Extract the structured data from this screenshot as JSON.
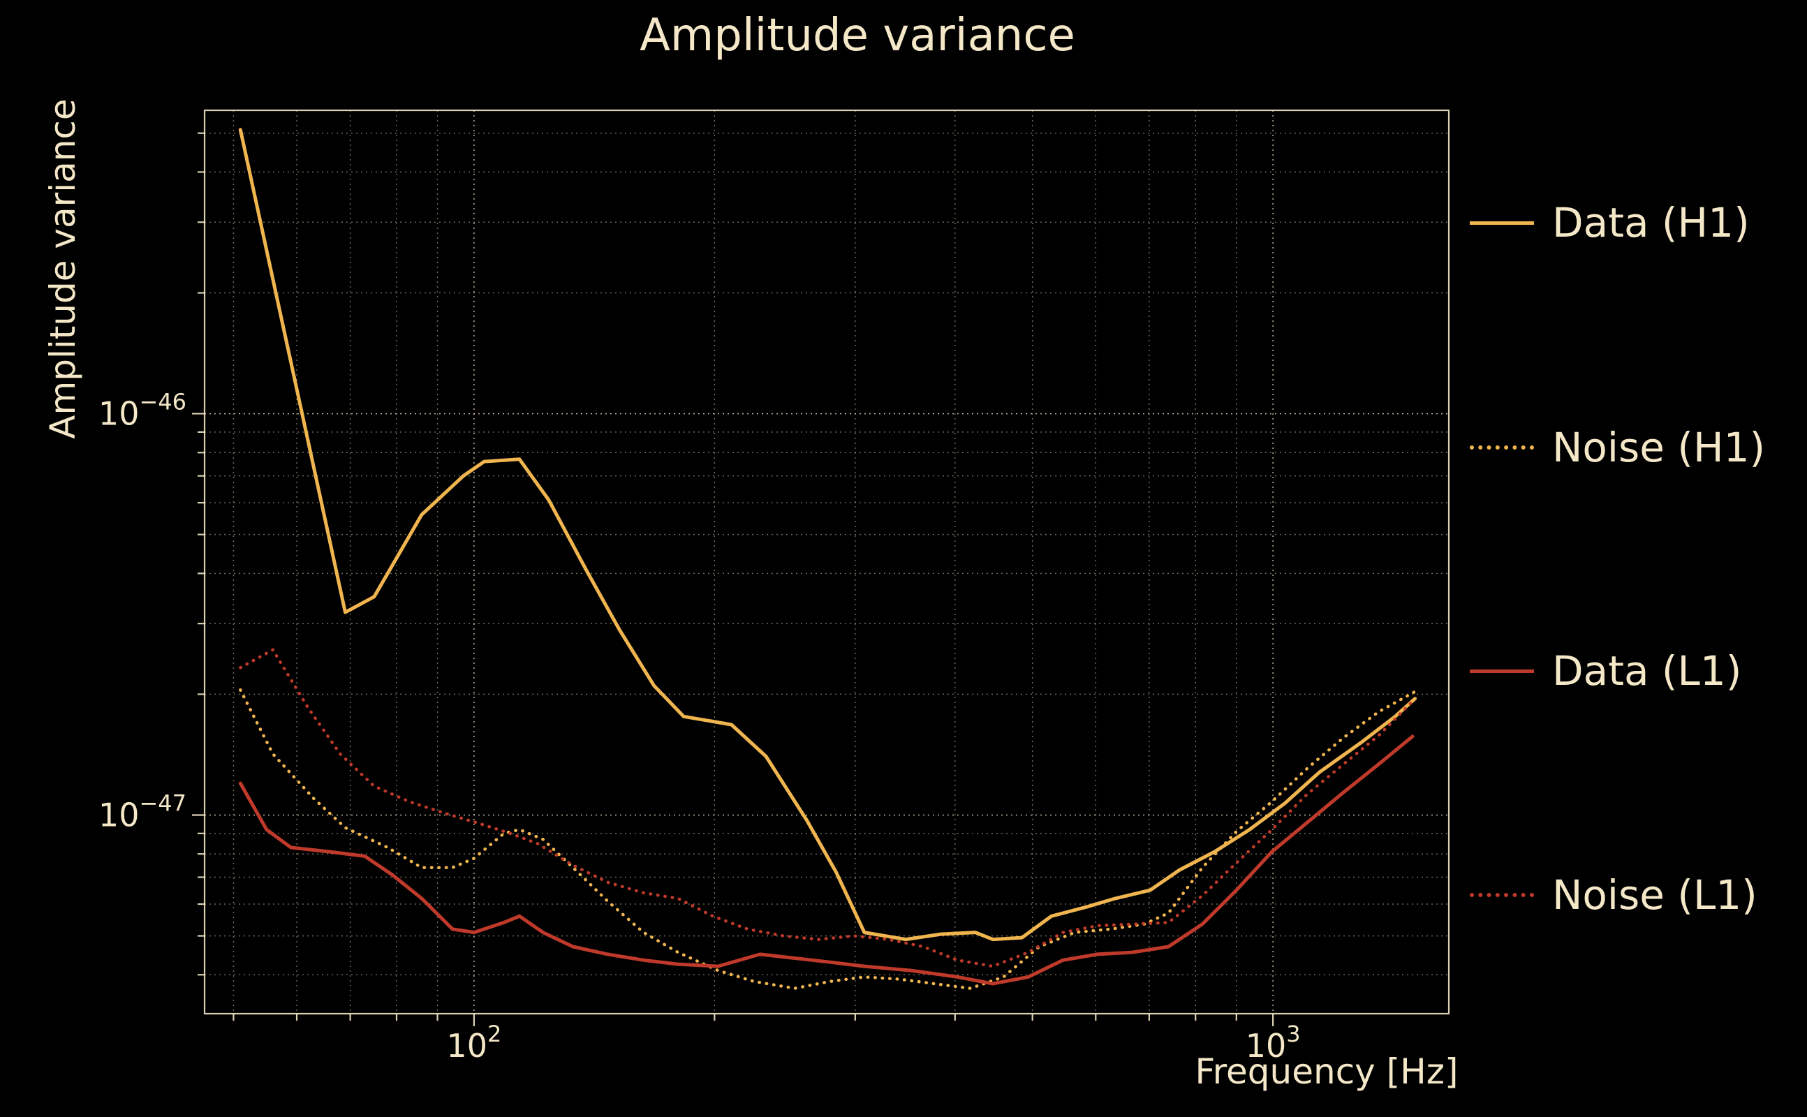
{
  "title": "Amplitude variance",
  "xlabel": "Frequency [Hz]",
  "ylabel": "Amplitude variance",
  "colors": {
    "background": "#000000",
    "text": "#f5e8c8",
    "grid": "#f5e8c8",
    "h1": "#f0b54e",
    "l1": "#c03a2b"
  },
  "legend": {
    "entries": [
      {
        "label": "Data (H1)",
        "color": "h1",
        "style": "solid"
      },
      {
        "label": "Noise (H1)",
        "color": "h1",
        "style": "dotted"
      },
      {
        "label": "Data (L1)",
        "color": "l1",
        "style": "solid"
      },
      {
        "label": "Noise (L1)",
        "color": "l1",
        "style": "dotted"
      }
    ]
  },
  "chart_data": {
    "type": "line",
    "title": "Amplitude variance",
    "xlabel": "Frequency [Hz]",
    "ylabel": "Amplitude variance",
    "xscale": "log",
    "yscale": "log",
    "xlim": [
      46,
      1660
    ],
    "ylim": [
      3.2e-48,
      5.7e-46
    ],
    "grid": "both",
    "legend_position": "right-outside",
    "xticks": [
      {
        "value": 100,
        "base": "10",
        "exp": "2"
      },
      {
        "value": 1000,
        "base": "10",
        "exp": "3"
      }
    ],
    "yticks": [
      {
        "value": 1e-46,
        "base": "10",
        "exp": "−46"
      },
      {
        "value": 1e-47,
        "base": "10",
        "exp": "−47"
      }
    ],
    "series": [
      {
        "name": "Data (H1)",
        "color": "h1",
        "style": "solid",
        "points": [
          [
            51,
            5.1e-46
          ],
          [
            69,
            3.2e-47
          ],
          [
            75,
            3.5e-47
          ],
          [
            86,
            5.6e-47
          ],
          [
            97,
            7e-47
          ],
          [
            103,
            7.6e-47
          ],
          [
            114,
            7.7e-47
          ],
          [
            124,
            6.1e-47
          ],
          [
            138,
            4.1e-47
          ],
          [
            152,
            2.9e-47
          ],
          [
            168,
            2.1e-47
          ],
          [
            183,
            1.76e-47
          ],
          [
            210,
            1.68e-47
          ],
          [
            232,
            1.4e-47
          ],
          [
            261,
            9.7e-48
          ],
          [
            284,
            7.2e-48
          ],
          [
            308,
            5.1e-48
          ],
          [
            347,
            4.9e-48
          ],
          [
            384,
            5.05e-48
          ],
          [
            424,
            5.1e-48
          ],
          [
            446,
            4.9e-48
          ],
          [
            485,
            4.95e-48
          ],
          [
            528,
            5.6e-48
          ],
          [
            584,
            5.9e-48
          ],
          [
            635,
            6.2e-48
          ],
          [
            702,
            6.5e-48
          ],
          [
            764,
            7.3e-48
          ],
          [
            845,
            8.1e-48
          ],
          [
            935,
            9.2e-48
          ],
          [
            1035,
            1.07e-47
          ],
          [
            1144,
            1.28e-47
          ],
          [
            1286,
            1.51e-47
          ],
          [
            1422,
            1.76e-47
          ],
          [
            1506,
            1.95e-47
          ]
        ]
      },
      {
        "name": "Noise (H1)",
        "color": "h1",
        "style": "dotted",
        "points": [
          [
            51,
            2.05e-47
          ],
          [
            56,
            1.42e-47
          ],
          [
            63,
            1.1e-47
          ],
          [
            69,
            9.3e-48
          ],
          [
            78,
            8.3e-48
          ],
          [
            86,
            7.4e-48
          ],
          [
            94,
            7.4e-48
          ],
          [
            100,
            7.8e-48
          ],
          [
            109,
            9e-48
          ],
          [
            114,
            9.2e-48
          ],
          [
            122,
            8.7e-48
          ],
          [
            133,
            7.4e-48
          ],
          [
            147,
            6.1e-48
          ],
          [
            163,
            5.1e-48
          ],
          [
            180,
            4.55e-48
          ],
          [
            202,
            4.1e-48
          ],
          [
            224,
            3.85e-48
          ],
          [
            252,
            3.7e-48
          ],
          [
            279,
            3.85e-48
          ],
          [
            308,
            3.95e-48
          ],
          [
            341,
            3.9e-48
          ],
          [
            377,
            3.8e-48
          ],
          [
            418,
            3.7e-48
          ],
          [
            460,
            3.95e-48
          ],
          [
            510,
            4.7e-48
          ],
          [
            565,
            5.1e-48
          ],
          [
            627,
            5.2e-48
          ],
          [
            690,
            5.35e-48
          ],
          [
            740,
            5.7e-48
          ],
          [
            816,
            7.4e-48
          ],
          [
            900,
            9.1e-48
          ],
          [
            997,
            1.08e-47
          ],
          [
            1105,
            1.31e-47
          ],
          [
            1226,
            1.56e-47
          ],
          [
            1357,
            1.81e-47
          ],
          [
            1506,
            2.03e-47
          ]
        ]
      },
      {
        "name": "Data (L1)",
        "color": "l1",
        "style": "solid",
        "points": [
          [
            51,
            1.2e-47
          ],
          [
            55,
            9.2e-48
          ],
          [
            59,
            8.3e-48
          ],
          [
            66,
            8.1e-48
          ],
          [
            73,
            7.9e-48
          ],
          [
            79,
            7.1e-48
          ],
          [
            86,
            6.2e-48
          ],
          [
            94,
            5.2e-48
          ],
          [
            100,
            5.1e-48
          ],
          [
            109,
            5.4e-48
          ],
          [
            114,
            5.6e-48
          ],
          [
            122,
            5.1e-48
          ],
          [
            133,
            4.7e-48
          ],
          [
            147,
            4.5e-48
          ],
          [
            163,
            4.35e-48
          ],
          [
            180,
            4.25e-48
          ],
          [
            202,
            4.2e-48
          ],
          [
            228,
            4.5e-48
          ],
          [
            252,
            4.4e-48
          ],
          [
            279,
            4.3e-48
          ],
          [
            308,
            4.2e-48
          ],
          [
            352,
            4.1e-48
          ],
          [
            403,
            3.95e-48
          ],
          [
            446,
            3.8e-48
          ],
          [
            494,
            3.95e-48
          ],
          [
            546,
            4.35e-48
          ],
          [
            603,
            4.5e-48
          ],
          [
            667,
            4.55e-48
          ],
          [
            740,
            4.7e-48
          ],
          [
            816,
            5.35e-48
          ],
          [
            900,
            6.5e-48
          ],
          [
            997,
            8.1e-48
          ],
          [
            1105,
            9.6e-48
          ],
          [
            1226,
            1.14e-47
          ],
          [
            1357,
            1.34e-47
          ],
          [
            1495,
            1.57e-47
          ]
        ]
      },
      {
        "name": "Noise (L1)",
        "color": "l1",
        "style": "dotted",
        "points": [
          [
            51,
            2.33e-47
          ],
          [
            56,
            2.58e-47
          ],
          [
            62,
            1.85e-47
          ],
          [
            68,
            1.42e-47
          ],
          [
            75,
            1.18e-47
          ],
          [
            83,
            1.08e-47
          ],
          [
            92,
            1.01e-47
          ],
          [
            102,
            9.5e-48
          ],
          [
            111,
            9e-48
          ],
          [
            120,
            8.5e-48
          ],
          [
            133,
            7.5e-48
          ],
          [
            147,
            6.8e-48
          ],
          [
            163,
            6.4e-48
          ],
          [
            180,
            6.2e-48
          ],
          [
            199,
            5.6e-48
          ],
          [
            220,
            5.2e-48
          ],
          [
            244,
            5e-48
          ],
          [
            270,
            4.9e-48
          ],
          [
            299,
            5e-48
          ],
          [
            330,
            4.9e-48
          ],
          [
            365,
            4.7e-48
          ],
          [
            403,
            4.35e-48
          ],
          [
            446,
            4.2e-48
          ],
          [
            494,
            4.55e-48
          ],
          [
            546,
            5.1e-48
          ],
          [
            603,
            5.3e-48
          ],
          [
            667,
            5.35e-48
          ],
          [
            740,
            5.4e-48
          ],
          [
            816,
            6.3e-48
          ],
          [
            900,
            7.6e-48
          ],
          [
            997,
            9.2e-48
          ],
          [
            1105,
            1.13e-47
          ],
          [
            1226,
            1.34e-47
          ],
          [
            1357,
            1.58e-47
          ],
          [
            1495,
            1.92e-47
          ]
        ]
      }
    ]
  }
}
